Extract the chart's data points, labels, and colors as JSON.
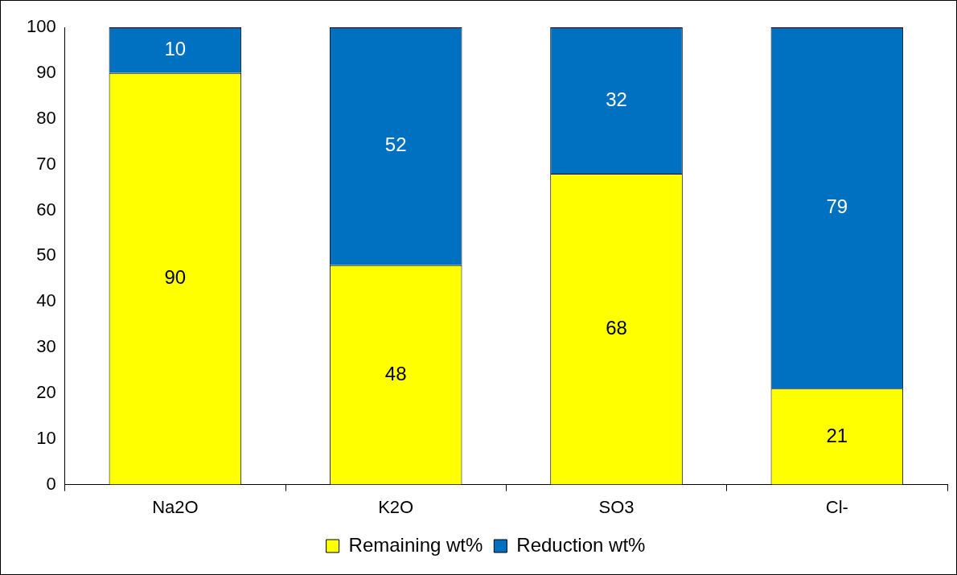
{
  "chart_data": {
    "type": "bar",
    "stacked": true,
    "categories": [
      "Na2O",
      "K2O",
      "SO3",
      "Cl-"
    ],
    "series": [
      {
        "name": "Remaining wt%",
        "color": "#ffff00",
        "values": [
          90,
          48,
          68,
          21
        ]
      },
      {
        "name": "Reduction wt%",
        "color": "#0070c0",
        "values": [
          10,
          52,
          32,
          79
        ]
      }
    ],
    "ylim": [
      0,
      100
    ],
    "yticks": [
      0,
      10,
      20,
      30,
      40,
      50,
      60,
      70,
      80,
      90,
      100
    ],
    "grid": false,
    "legend": "bottom",
    "data_labels": true
  }
}
